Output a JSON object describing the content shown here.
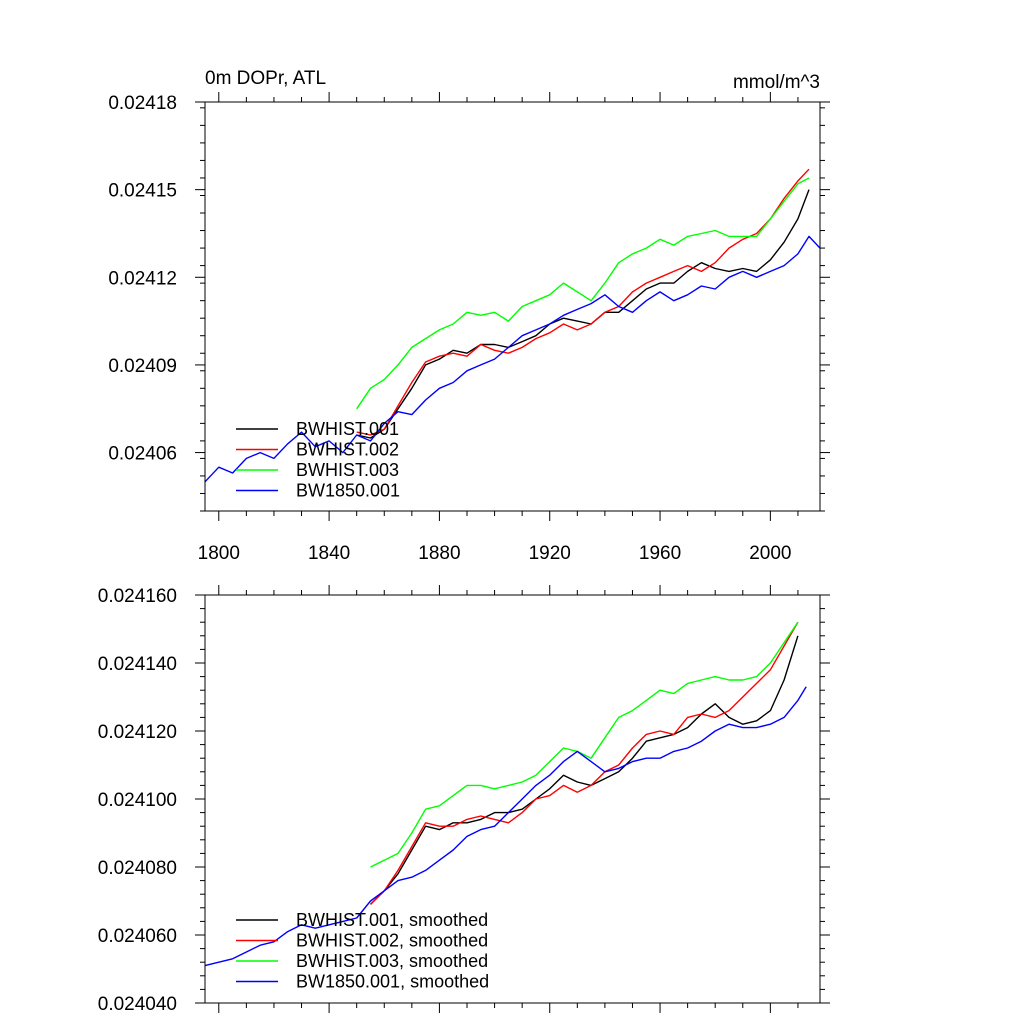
{
  "chart_data": [
    {
      "type": "line",
      "title_left": "0m DOPr, ATL",
      "title_right": "mmol/m^3",
      "xlabel": "",
      "ylabel": "",
      "xlim": [
        1795,
        2018
      ],
      "ylim": [
        0.02404,
        0.02418
      ],
      "x_ticks": [
        1800,
        1840,
        1880,
        1920,
        1960,
        2000
      ],
      "x_tick_labels": [
        "1800",
        "1840",
        "1880",
        "1920",
        "1960",
        "2000"
      ],
      "y_ticks": [
        0.02406,
        0.02409,
        0.02412,
        0.02415,
        0.02418
      ],
      "y_tick_labels": [
        "0.02406",
        "0.02409",
        "0.02412",
        "0.02415",
        "0.02418"
      ],
      "legend_position": "bottom-left",
      "series": [
        {
          "name": "BWHIST.001",
          "color": "#000000",
          "x": [
            1850,
            1855,
            1860,
            1865,
            1870,
            1875,
            1880,
            1885,
            1890,
            1895,
            1900,
            1905,
            1910,
            1915,
            1920,
            1925,
            1930,
            1935,
            1940,
            1945,
            1950,
            1955,
            1960,
            1965,
            1970,
            1975,
            1980,
            1985,
            1990,
            1995,
            2000,
            2005,
            2010,
            2014
          ],
          "y": [
            0.024066,
            0.024065,
            0.024068,
            0.024075,
            0.024082,
            0.02409,
            0.024092,
            0.024095,
            0.024094,
            0.024097,
            0.024097,
            0.024096,
            0.024098,
            0.0241,
            0.024104,
            0.024106,
            0.024105,
            0.024104,
            0.024108,
            0.024108,
            0.024112,
            0.024116,
            0.024118,
            0.024118,
            0.024122,
            0.024125,
            0.024123,
            0.024122,
            0.024123,
            0.024122,
            0.024126,
            0.024132,
            0.02414,
            0.02415
          ]
        },
        {
          "name": "BWHIST.002",
          "color": "#ff0000",
          "x": [
            1850,
            1855,
            1860,
            1865,
            1870,
            1875,
            1880,
            1885,
            1890,
            1895,
            1900,
            1905,
            1910,
            1915,
            1920,
            1925,
            1930,
            1935,
            1940,
            1945,
            1950,
            1955,
            1960,
            1965,
            1970,
            1975,
            1980,
            1985,
            1990,
            1995,
            2000,
            2005,
            2010,
            2014
          ],
          "y": [
            0.024067,
            0.024066,
            0.024068,
            0.024076,
            0.024084,
            0.024091,
            0.024093,
            0.024094,
            0.024093,
            0.024097,
            0.024095,
            0.024094,
            0.024096,
            0.024099,
            0.024101,
            0.024104,
            0.024102,
            0.024104,
            0.024108,
            0.02411,
            0.024115,
            0.024118,
            0.02412,
            0.024122,
            0.024124,
            0.024122,
            0.024125,
            0.02413,
            0.024133,
            0.024135,
            0.02414,
            0.024147,
            0.024153,
            0.024157
          ]
        },
        {
          "name": "BWHIST.003",
          "color": "#00ff00",
          "x": [
            1850,
            1855,
            1860,
            1865,
            1870,
            1875,
            1880,
            1885,
            1890,
            1895,
            1900,
            1905,
            1910,
            1915,
            1920,
            1925,
            1930,
            1935,
            1940,
            1945,
            1950,
            1955,
            1960,
            1965,
            1970,
            1975,
            1980,
            1985,
            1990,
            1995,
            2000,
            2005,
            2010,
            2014
          ],
          "y": [
            0.024075,
            0.024082,
            0.024085,
            0.02409,
            0.024096,
            0.024099,
            0.024102,
            0.024104,
            0.024108,
            0.024107,
            0.024108,
            0.024105,
            0.02411,
            0.024112,
            0.024114,
            0.024118,
            0.024115,
            0.024112,
            0.024118,
            0.024125,
            0.024128,
            0.02413,
            0.024133,
            0.024131,
            0.024134,
            0.024135,
            0.024136,
            0.024134,
            0.024134,
            0.024134,
            0.02414,
            0.024146,
            0.024152,
            0.024154
          ]
        },
        {
          "name": "BW1850.001",
          "color": "#0000ff",
          "x": [
            1795,
            1800,
            1805,
            1810,
            1815,
            1820,
            1825,
            1830,
            1835,
            1840,
            1845,
            1850,
            1855,
            1860,
            1865,
            1870,
            1875,
            1880,
            1885,
            1890,
            1895,
            1900,
            1905,
            1910,
            1915,
            1920,
            1925,
            1930,
            1935,
            1940,
            1945,
            1950,
            1955,
            1960,
            1965,
            1970,
            1975,
            1980,
            1985,
            1990,
            1995,
            2000,
            2005,
            2010,
            2014,
            2018
          ],
          "y": [
            0.02405,
            0.024055,
            0.024053,
            0.024058,
            0.02406,
            0.024058,
            0.024063,
            0.024067,
            0.024062,
            0.024064,
            0.02406,
            0.024066,
            0.024064,
            0.02407,
            0.024074,
            0.024073,
            0.024078,
            0.024082,
            0.024084,
            0.024088,
            0.02409,
            0.024092,
            0.024096,
            0.0241,
            0.024102,
            0.024104,
            0.024107,
            0.024109,
            0.024111,
            0.024114,
            0.02411,
            0.024108,
            0.024112,
            0.024115,
            0.024112,
            0.024114,
            0.024117,
            0.024116,
            0.02412,
            0.024122,
            0.02412,
            0.024122,
            0.024124,
            0.024128,
            0.024134,
            0.02413
          ]
        }
      ]
    },
    {
      "type": "line",
      "title_left": "",
      "title_right": "",
      "xlabel": "",
      "ylabel": "",
      "xlim": [
        1795,
        2018
      ],
      "ylim": [
        0.02404,
        0.02416
      ],
      "x_ticks": [
        1800,
        1840,
        1880,
        1920,
        1960,
        2000
      ],
      "y_ticks": [
        0.02404,
        0.02406,
        0.02408,
        0.0241,
        0.02412,
        0.02414,
        0.02416
      ],
      "y_tick_labels": [
        "0.024040",
        "0.024060",
        "0.024080",
        "0.024100",
        "0.024120",
        "0.024140",
        "0.024160"
      ],
      "legend_position": "bottom-left",
      "series": [
        {
          "name": "BWHIST.001, smoothed",
          "color": "#000000",
          "x": [
            1855,
            1860,
            1865,
            1870,
            1875,
            1880,
            1885,
            1890,
            1895,
            1900,
            1905,
            1910,
            1915,
            1920,
            1925,
            1930,
            1935,
            1940,
            1945,
            1950,
            1955,
            1960,
            1965,
            1970,
            1975,
            1980,
            1985,
            1990,
            1995,
            2000,
            2005,
            2010
          ],
          "y": [
            0.024069,
            0.024073,
            0.024078,
            0.024085,
            0.024092,
            0.024091,
            0.024093,
            0.024093,
            0.024094,
            0.024096,
            0.024096,
            0.024097,
            0.0241,
            0.024103,
            0.024107,
            0.024105,
            0.024104,
            0.024106,
            0.024108,
            0.024112,
            0.024117,
            0.024118,
            0.024119,
            0.024121,
            0.024125,
            0.024128,
            0.024124,
            0.024122,
            0.024123,
            0.024126,
            0.024135,
            0.024148
          ]
        },
        {
          "name": "BWHIST.002, smoothed",
          "color": "#ff0000",
          "x": [
            1855,
            1860,
            1865,
            1870,
            1875,
            1880,
            1885,
            1890,
            1895,
            1900,
            1905,
            1910,
            1915,
            1920,
            1925,
            1930,
            1935,
            1940,
            1945,
            1950,
            1955,
            1960,
            1965,
            1970,
            1975,
            1980,
            1985,
            1990,
            1995,
            2000,
            2005,
            2010
          ],
          "y": [
            0.024069,
            0.024073,
            0.024079,
            0.024086,
            0.024093,
            0.024092,
            0.024092,
            0.024094,
            0.024095,
            0.024094,
            0.024093,
            0.024096,
            0.0241,
            0.024101,
            0.024104,
            0.024102,
            0.024104,
            0.024108,
            0.02411,
            0.024115,
            0.024119,
            0.02412,
            0.024119,
            0.024124,
            0.024125,
            0.024124,
            0.024126,
            0.02413,
            0.024134,
            0.024138,
            0.024145,
            0.024152
          ]
        },
        {
          "name": "BWHIST.003, smoothed",
          "color": "#00ff00",
          "x": [
            1855,
            1860,
            1865,
            1870,
            1875,
            1880,
            1885,
            1890,
            1895,
            1900,
            1905,
            1910,
            1915,
            1920,
            1925,
            1930,
            1935,
            1940,
            1945,
            1950,
            1955,
            1960,
            1965,
            1970,
            1975,
            1980,
            1985,
            1990,
            1995,
            2000,
            2005,
            2010
          ],
          "y": [
            0.02408,
            0.024082,
            0.024084,
            0.02409,
            0.024097,
            0.024098,
            0.024101,
            0.024104,
            0.024104,
            0.024103,
            0.024104,
            0.024105,
            0.024107,
            0.024111,
            0.024115,
            0.024114,
            0.024112,
            0.024118,
            0.024124,
            0.024126,
            0.024129,
            0.024132,
            0.024131,
            0.024134,
            0.024135,
            0.024136,
            0.024135,
            0.024135,
            0.024136,
            0.02414,
            0.024146,
            0.024152
          ]
        },
        {
          "name": "BW1850.001, smoothed",
          "color": "#0000ff",
          "x": [
            1795,
            1800,
            1805,
            1810,
            1815,
            1820,
            1825,
            1830,
            1835,
            1840,
            1845,
            1850,
            1855,
            1860,
            1865,
            1870,
            1875,
            1880,
            1885,
            1890,
            1895,
            1900,
            1905,
            1910,
            1915,
            1920,
            1925,
            1930,
            1935,
            1940,
            1945,
            1950,
            1955,
            1960,
            1965,
            1970,
            1975,
            1980,
            1985,
            1990,
            1995,
            2000,
            2005,
            2010,
            2013
          ],
          "y": [
            0.024051,
            0.024052,
            0.024053,
            0.024055,
            0.024057,
            0.024058,
            0.024061,
            0.024063,
            0.024062,
            0.024063,
            0.024064,
            0.024065,
            0.02407,
            0.024073,
            0.024076,
            0.024077,
            0.024079,
            0.024082,
            0.024085,
            0.024089,
            0.024091,
            0.024092,
            0.024096,
            0.0241,
            0.024104,
            0.024107,
            0.024111,
            0.024114,
            0.024111,
            0.024108,
            0.024109,
            0.024111,
            0.024112,
            0.024112,
            0.024114,
            0.024115,
            0.024117,
            0.02412,
            0.024122,
            0.024121,
            0.024121,
            0.024122,
            0.024124,
            0.024129,
            0.024133
          ]
        }
      ]
    }
  ]
}
